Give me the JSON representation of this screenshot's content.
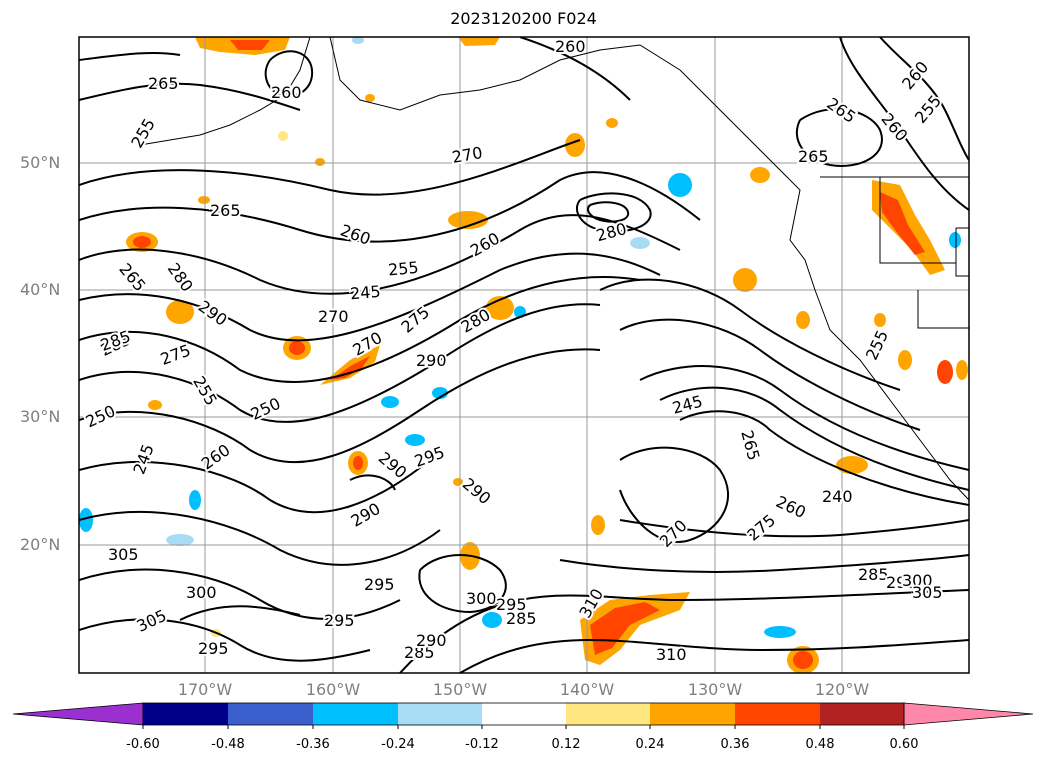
{
  "title": "2023120200 F024",
  "latitude_labels": [
    "50°N",
    "40°N",
    "30°N",
    "20°N"
  ],
  "longitude_labels": [
    "170°W",
    "160°W",
    "150°W",
    "140°W",
    "130°W",
    "120°W"
  ],
  "colorbar": {
    "ticks": [
      "-0.60",
      "-0.48",
      "-0.36",
      "-0.24",
      "-0.12",
      "0.12",
      "0.24",
      "0.36",
      "0.48",
      "0.60"
    ],
    "colors": [
      "#9b30d0",
      "#00008b",
      "#3a5fcd",
      "#00bfff",
      "#a8dcf5",
      "#ffffff",
      "#ffe680",
      "#ffa500",
      "#ff4500",
      "#b22222",
      "#ff88aa"
    ]
  },
  "contour_labels": [
    "265",
    "260",
    "260",
    "255",
    "265",
    "260",
    "265",
    "270",
    "265",
    "260",
    "255",
    "265",
    "280",
    "290",
    "285",
    "275",
    "270",
    "260",
    "245",
    "250",
    "255",
    "250",
    "245",
    "260",
    "270",
    "275",
    "280",
    "285",
    "290",
    "280",
    "290",
    "290",
    "295",
    "290",
    "295",
    "300",
    "285",
    "295",
    "300",
    "305",
    "310",
    "245",
    "255",
    "265",
    "270",
    "275",
    "260",
    "240",
    "285",
    "290",
    "300",
    "305",
    "295",
    "285",
    "290",
    "305",
    "295",
    "310",
    "260",
    "255"
  ]
}
